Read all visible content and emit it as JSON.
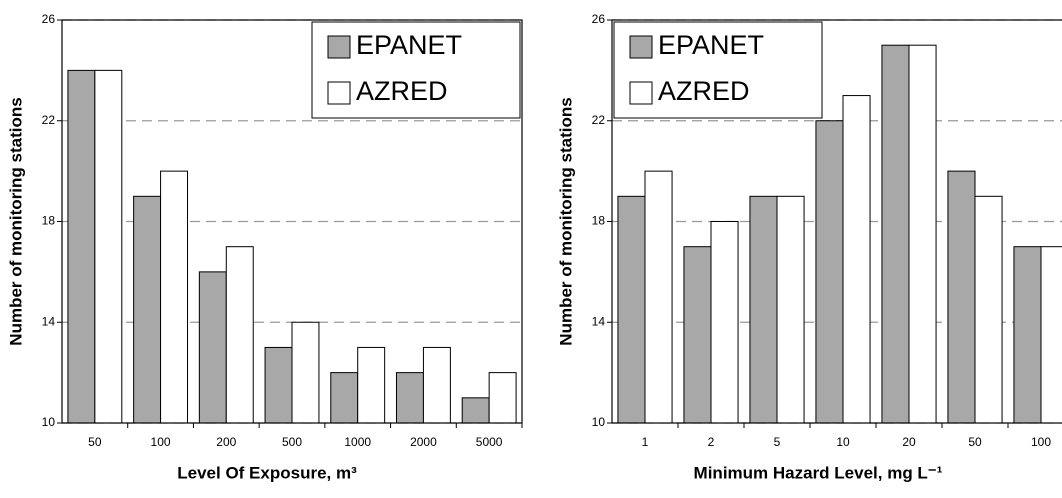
{
  "chart_data": [
    {
      "type": "bar",
      "xlabel": "Level Of Exposure, m³",
      "ylabel": "Number of monitoring stations",
      "categories": [
        "50",
        "100",
        "200",
        "500",
        "1000",
        "2000",
        "5000"
      ],
      "series": [
        {
          "name": "EPANET",
          "color": "#a8a8a8",
          "values": [
            24,
            19,
            16,
            13,
            12,
            12,
            11
          ]
        },
        {
          "name": "AZRED",
          "color": "#ffffff",
          "values": [
            24,
            20,
            17,
            14,
            13,
            13,
            12
          ]
        }
      ],
      "ylim": [
        10,
        26
      ],
      "yticks": [
        10,
        14,
        18,
        22,
        26
      ],
      "grid": true,
      "legend": "upper right"
    },
    {
      "type": "bar",
      "xlabel": "Minimum Hazard Level, mg L⁻¹",
      "ylabel": "Number of monitoring stations",
      "categories": [
        "1",
        "2",
        "5",
        "10",
        "20",
        "50",
        "100"
      ],
      "series": [
        {
          "name": "EPANET",
          "color": "#a8a8a8",
          "values": [
            19,
            17,
            19,
            22,
            25,
            20,
            17
          ]
        },
        {
          "name": "AZRED",
          "color": "#ffffff",
          "values": [
            20,
            18,
            19,
            23,
            25,
            19,
            17
          ]
        }
      ],
      "ylim": [
        10,
        26
      ],
      "yticks": [
        10,
        14,
        18,
        22,
        26
      ],
      "grid": true,
      "legend": "upper left"
    }
  ]
}
